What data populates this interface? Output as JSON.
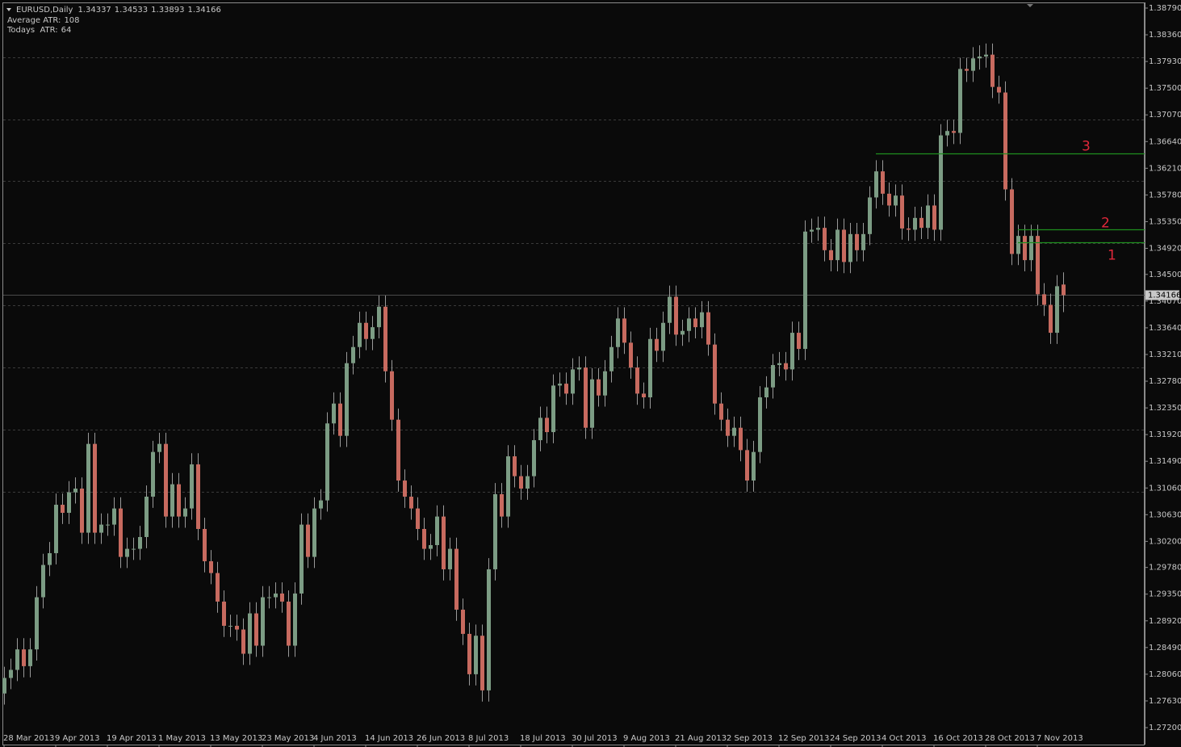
{
  "chart_data": {
    "type": "candlestick",
    "title": "EURUSD,Daily",
    "indicators": [
      {
        "label": "Average ATR:",
        "value": 108
      },
      {
        "label": "Todays  ATR:",
        "value": 64
      }
    ],
    "categories": [
      "28 Mar 2013",
      null,
      null,
      null,
      null,
      null,
      null,
      null,
      "9 Apr 2013",
      null,
      null,
      null,
      null,
      null,
      null,
      null,
      "19 Apr 2013",
      null,
      null,
      null,
      null,
      null,
      null,
      null,
      "1 May 2013",
      null,
      null,
      null,
      null,
      null,
      null,
      null,
      "13 May 2013",
      null,
      null,
      null,
      null,
      null,
      null,
      null,
      "23 May 2013",
      null,
      null,
      null,
      null,
      null,
      null,
      null,
      "4 Jun 2013",
      null,
      null,
      null,
      null,
      null,
      null,
      null,
      "14 Jun 2013",
      null,
      null,
      null,
      null,
      null,
      null,
      null,
      "26 Jun 2013",
      null,
      null,
      null,
      null,
      null,
      null,
      null,
      "8 Jul 2013",
      null,
      null,
      null,
      null,
      null,
      null,
      null,
      "18 Jul 2013",
      null,
      null,
      null,
      null,
      null,
      null,
      null,
      "30 Jul 2013",
      null,
      null,
      null,
      null,
      null,
      null,
      null,
      "9 Aug 2013",
      null,
      null,
      null,
      null,
      null,
      null,
      null,
      "21 Aug 2013",
      null,
      null,
      null,
      null,
      null,
      null,
      null,
      "2 Sep 2013",
      null,
      null,
      null,
      null,
      null,
      null,
      null,
      "12 Sep 2013",
      null,
      null,
      null,
      null,
      null,
      null,
      null,
      "24 Sep 2013",
      null,
      null,
      null,
      null,
      null,
      null,
      null,
      "4 Oct 2013",
      null,
      null,
      null,
      null,
      null,
      null,
      null,
      "16 Oct 2013",
      null,
      null,
      null,
      null,
      null,
      null,
      null,
      "28 Oct 2013",
      null,
      null,
      null,
      null,
      null,
      null,
      null,
      "7 Nov 2013",
      null,
      null,
      null,
      null
    ],
    "open": [
      1.2775,
      1.28,
      1.2813,
      1.2846,
      1.2819,
      1.2846,
      1.293,
      1.2982,
      1.3001,
      1.3079,
      1.3066,
      1.3099,
      1.3105,
      1.3034,
      1.3177,
      1.3034,
      1.3047,
      1.3047,
      1.3073,
      1.2995,
      1.3008,
      1.3008,
      1.3027,
      1.3092,
      1.3164,
      1.3177,
      1.306,
      1.3112,
      1.306,
      1.3073,
      1.3144,
      1.304,
      1.2988,
      1.2969,
      1.2923,
      1.2884,
      1.2884,
      1.2878,
      1.2839,
      1.2904,
      1.2852,
      1.293,
      1.293,
      1.2936,
      1.2923,
      1.2852,
      1.2936,
      1.3047,
      1.2995,
      1.3073,
      1.3086,
      1.321,
      1.3242,
      1.319,
      1.3307,
      1.3333,
      1.3372,
      1.3346,
      1.3365,
      1.3398,
      1.3294,
      1.3216,
      1.3118,
      1.3092,
      1.3073,
      1.304,
      1.3008,
      1.3014,
      1.306,
      1.2975,
      1.3008,
      1.291,
      1.2871,
      1.2806,
      1.2868,
      1.278,
      1.2975,
      1.3096,
      1.306,
      1.3157,
      1.3125,
      1.3105,
      1.3125,
      1.3183,
      1.3219,
      1.3196,
      1.3271,
      1.3274,
      1.3258,
      1.3297,
      1.33,
      1.3203,
      1.3281,
      1.3255,
      1.3294,
      1.3333,
      1.3379,
      1.334,
      1.33,
      1.3258,
      1.3252,
      1.3346,
      1.3327,
      1.3372,
      1.3414,
      1.3353,
      1.3359,
      1.3379,
      1.3365,
      1.3389,
      1.3337,
      1.3242,
      1.3216,
      1.319,
      1.3203,
      1.3167,
      1.3118,
      1.3164,
      1.3252,
      1.3268,
      1.3304,
      1.3307,
      1.3297,
      1.3356,
      1.333,
      1.3519,
      1.3522,
      1.3525,
      1.3489,
      1.3473,
      1.3522,
      1.347,
      1.3515,
      1.3489,
      1.3515,
      1.3574,
      1.3616,
      1.358,
      1.3561,
      1.3577,
      1.3524,
      1.3522,
      1.3541,
      1.3525,
      1.3561,
      1.3522,
      1.3674,
      1.3681,
      1.3678,
      1.3781,
      1.3778,
      1.3798,
      1.3801,
      1.3804,
      1.3752,
      1.3743,
      1.3587,
      1.3483,
      1.3512,
      1.3473,
      1.3512,
      1.3418,
      1.3401,
      1.3356,
      1.34337
    ],
    "high": [
      1.2818,
      1.2831,
      1.2864,
      1.2864,
      1.2864,
      1.2948,
      1.3,
      1.3019,
      1.3097,
      1.3097,
      1.3117,
      1.3123,
      1.3123,
      1.3195,
      1.3195,
      1.3065,
      1.3065,
      1.3091,
      1.3091,
      1.3026,
      1.3026,
      1.3045,
      1.311,
      1.3182,
      1.3195,
      1.3195,
      1.313,
      1.313,
      1.3091,
      1.3162,
      1.3162,
      1.3058,
      1.3006,
      1.2987,
      1.2941,
      1.2902,
      1.2902,
      1.2896,
      1.2922,
      1.2922,
      1.2948,
      1.2948,
      1.2954,
      1.2954,
      1.2941,
      1.2954,
      1.3065,
      1.3065,
      1.3091,
      1.3104,
      1.3228,
      1.326,
      1.326,
      1.3325,
      1.3351,
      1.339,
      1.339,
      1.3383,
      1.3416,
      1.3416,
      1.3312,
      1.3234,
      1.3136,
      1.311,
      1.3091,
      1.3058,
      1.3032,
      1.3078,
      1.3078,
      1.3026,
      1.3026,
      1.2928,
      1.2889,
      1.2886,
      1.2886,
      1.2993,
      1.3114,
      1.3114,
      1.3175,
      1.3175,
      1.3143,
      1.3143,
      1.3201,
      1.3237,
      1.3237,
      1.3289,
      1.3292,
      1.3292,
      1.3315,
      1.3318,
      1.3318,
      1.3299,
      1.3299,
      1.3312,
      1.3351,
      1.3397,
      1.3397,
      1.3358,
      1.3318,
      1.3276,
      1.3364,
      1.3364,
      1.339,
      1.3432,
      1.3432,
      1.3377,
      1.3397,
      1.3397,
      1.3407,
      1.3407,
      1.3355,
      1.326,
      1.3234,
      1.3221,
      1.3221,
      1.3185,
      1.3182,
      1.327,
      1.3286,
      1.3322,
      1.3325,
      1.3325,
      1.3374,
      1.3374,
      1.3537,
      1.354,
      1.3543,
      1.3543,
      1.3507,
      1.354,
      1.354,
      1.3533,
      1.3533,
      1.3533,
      1.3592,
      1.3634,
      1.3634,
      1.3598,
      1.3595,
      1.3595,
      1.3542,
      1.3559,
      1.3559,
      1.3579,
      1.3579,
      1.3692,
      1.3699,
      1.3699,
      1.3799,
      1.3799,
      1.3816,
      1.3819,
      1.3822,
      1.3822,
      1.377,
      1.3761,
      1.3605,
      1.353,
      1.353,
      1.353,
      1.353,
      1.3436,
      1.3419,
      1.3449,
      1.34533
    ],
    "low": [
      1.2757,
      1.2782,
      1.2795,
      1.2801,
      1.2801,
      1.2828,
      1.2912,
      1.2964,
      1.2983,
      1.3048,
      1.3048,
      1.3081,
      1.3016,
      1.3016,
      1.3016,
      1.3016,
      1.3029,
      1.3029,
      1.2977,
      1.2977,
      1.299,
      1.299,
      1.3009,
      1.3074,
      1.3146,
      1.3042,
      1.3042,
      1.3042,
      1.3042,
      1.3055,
      1.3022,
      1.297,
      1.2951,
      1.2905,
      1.2866,
      1.2866,
      1.286,
      1.2821,
      1.2821,
      1.2834,
      1.2834,
      1.2912,
      1.2912,
      1.2905,
      1.2834,
      1.2834,
      1.2918,
      1.2977,
      1.2977,
      1.3055,
      1.3068,
      1.3192,
      1.3172,
      1.3172,
      1.3289,
      1.3315,
      1.3328,
      1.3328,
      1.3347,
      1.3276,
      1.3198,
      1.31,
      1.3074,
      1.3055,
      1.3022,
      1.299,
      1.299,
      1.2996,
      1.2957,
      1.2957,
      1.2892,
      1.2853,
      1.2788,
      1.2788,
      1.2762,
      1.2762,
      1.2957,
      1.3042,
      1.3042,
      1.3107,
      1.3087,
      1.3087,
      1.3107,
      1.3165,
      1.3178,
      1.3178,
      1.3253,
      1.324,
      1.324,
      1.3279,
      1.3185,
      1.3185,
      1.3237,
      1.3237,
      1.3276,
      1.3315,
      1.3322,
      1.3282,
      1.324,
      1.3234,
      1.3234,
      1.3309,
      1.3309,
      1.3354,
      1.3335,
      1.3335,
      1.3341,
      1.3347,
      1.3347,
      1.3319,
      1.3224,
      1.3198,
      1.3172,
      1.3172,
      1.3149,
      1.31,
      1.31,
      1.3146,
      1.3234,
      1.325,
      1.3286,
      1.3279,
      1.3279,
      1.3312,
      1.3312,
      1.3501,
      1.3504,
      1.3471,
      1.3455,
      1.3455,
      1.3452,
      1.3452,
      1.3471,
      1.3471,
      1.3497,
      1.3556,
      1.3562,
      1.3543,
      1.3543,
      1.3506,
      1.3504,
      1.3504,
      1.3507,
      1.3507,
      1.3504,
      1.3504,
      1.3656,
      1.366,
      1.366,
      1.376,
      1.376,
      1.378,
      1.3783,
      1.3734,
      1.3725,
      1.3569,
      1.3465,
      1.3465,
      1.3455,
      1.3455,
      1.34,
      1.3383,
      1.3338,
      1.3338,
      1.33893
    ],
    "close": [
      1.28,
      1.2813,
      1.2846,
      1.2819,
      1.2846,
      1.293,
      1.2982,
      1.3001,
      1.3079,
      1.3066,
      1.3099,
      1.3105,
      1.3034,
      1.3177,
      1.3034,
      1.3047,
      1.3047,
      1.3073,
      1.2995,
      1.3008,
      1.3008,
      1.3027,
      1.3092,
      1.3164,
      1.3177,
      1.306,
      1.3112,
      1.306,
      1.3073,
      1.3144,
      1.304,
      1.2988,
      1.2969,
      1.2923,
      1.2884,
      1.2884,
      1.2878,
      1.2839,
      1.2904,
      1.2852,
      1.293,
      1.293,
      1.2936,
      1.2923,
      1.2852,
      1.2936,
      1.3047,
      1.2995,
      1.3073,
      1.3086,
      1.321,
      1.3242,
      1.319,
      1.3307,
      1.3333,
      1.3372,
      1.3346,
      1.3365,
      1.3398,
      1.3294,
      1.3216,
      1.3118,
      1.3092,
      1.3073,
      1.304,
      1.3008,
      1.3014,
      1.306,
      1.2975,
      1.3008,
      1.291,
      1.2871,
      1.2806,
      1.2868,
      1.278,
      1.2975,
      1.3096,
      1.306,
      1.3157,
      1.3125,
      1.3105,
      1.3125,
      1.3183,
      1.3219,
      1.3196,
      1.3271,
      1.3274,
      1.3258,
      1.3297,
      1.33,
      1.3203,
      1.3281,
      1.3255,
      1.3294,
      1.3333,
      1.3379,
      1.334,
      1.33,
      1.3258,
      1.3252,
      1.3346,
      1.3327,
      1.3372,
      1.3414,
      1.3353,
      1.3359,
      1.3379,
      1.3365,
      1.3389,
      1.3337,
      1.3242,
      1.3216,
      1.319,
      1.3203,
      1.3167,
      1.3118,
      1.3164,
      1.3252,
      1.3268,
      1.3304,
      1.3307,
      1.3297,
      1.3356,
      1.333,
      1.3519,
      1.3522,
      1.3525,
      1.3489,
      1.3473,
      1.3522,
      1.347,
      1.3515,
      1.3489,
      1.3515,
      1.3574,
      1.3616,
      1.358,
      1.3561,
      1.3577,
      1.3524,
      1.3522,
      1.3541,
      1.3525,
      1.3561,
      1.3522,
      1.3674,
      1.3681,
      1.3678,
      1.3781,
      1.3778,
      1.3798,
      1.3801,
      1.3804,
      1.3752,
      1.3743,
      1.3587,
      1.3483,
      1.3512,
      1.3473,
      1.3512,
      1.3418,
      1.3401,
      1.3356,
      1.3431,
      1.34166
    ],
    "up_color": "#7c9c84",
    "down_color": "#c76a5f",
    "wick_color": "#9a9a9a",
    "ylim": [
      1.272,
      1.3879
    ],
    "yticks": [
      {
        "value": 1.3879,
        "label": "1.38790"
      },
      {
        "value": 1.3836,
        "label": "1.38360"
      },
      {
        "value": 1.3793,
        "label": "1.37930"
      },
      {
        "value": 1.375,
        "label": "1.37500"
      },
      {
        "value": 1.3707,
        "label": "1.37070"
      },
      {
        "value": 1.3664,
        "label": "1.36640"
      },
      {
        "value": 1.3621,
        "label": "1.36210"
      },
      {
        "value": 1.3578,
        "label": "1.35780"
      },
      {
        "value": 1.3535,
        "label": "1.35350"
      },
      {
        "value": 1.3492,
        "label": "1.34920"
      },
      {
        "value": 1.345,
        "label": "1.34500"
      },
      {
        "value": 1.3407,
        "label": "1.34070"
      },
      {
        "value": 1.3364,
        "label": "1.33640"
      },
      {
        "value": 1.3321,
        "label": "1.33210"
      },
      {
        "value": 1.3278,
        "label": "1.32780"
      },
      {
        "value": 1.3235,
        "label": "1.32350"
      },
      {
        "value": 1.3192,
        "label": "1.31920"
      },
      {
        "value": 1.3149,
        "label": "1.31490"
      },
      {
        "value": 1.3106,
        "label": "1.31060"
      },
      {
        "value": 1.3063,
        "label": "1.30630"
      },
      {
        "value": 1.302,
        "label": "1.30200"
      },
      {
        "value": 1.2978,
        "label": "1.29780"
      },
      {
        "value": 1.2935,
        "label": "1.29350"
      },
      {
        "value": 1.2892,
        "label": "1.28920"
      },
      {
        "value": 1.2849,
        "label": "1.28490"
      },
      {
        "value": 1.2806,
        "label": "1.28060"
      },
      {
        "value": 1.2763,
        "label": "1.27630"
      },
      {
        "value": 1.272,
        "label": "1.27200"
      }
    ],
    "grid_levels": [
      1.38,
      1.37,
      1.36,
      1.35,
      1.34,
      1.33,
      1.32,
      1.31
    ],
    "levels": [
      {
        "label": "3",
        "value": 1.3645
      },
      {
        "label": "2",
        "value": 1.3523
      },
      {
        "label": "1",
        "value": 1.3502
      }
    ],
    "level_color": "#1f8f1f",
    "level_label_color": "#e0283a"
  }
}
